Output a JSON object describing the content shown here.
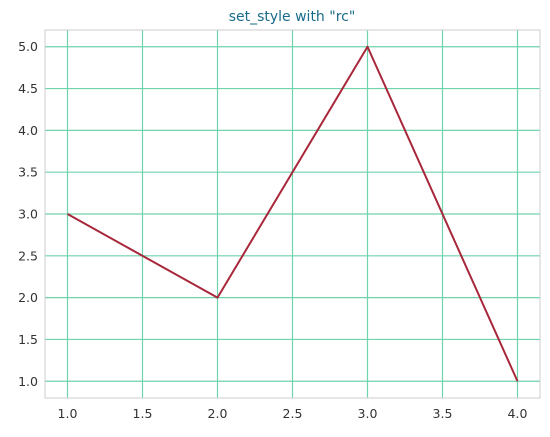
{
  "chart_data": {
    "type": "line",
    "title": "set_style with \"rc\"",
    "xlabel": "",
    "ylabel": "",
    "x": [
      1.0,
      2.0,
      3.0,
      4.0
    ],
    "series": [
      {
        "values": [
          3.0,
          2.0,
          5.0,
          1.0
        ]
      }
    ],
    "xlim": [
      0.85,
      4.15
    ],
    "ylim": [
      0.8,
      5.2
    ],
    "xticks": [
      1.0,
      1.5,
      2.0,
      2.5,
      3.0,
      3.5,
      4.0
    ],
    "xtick_labels": [
      "1.0",
      "1.5",
      "2.0",
      "2.5",
      "3.0",
      "3.5",
      "4.0"
    ],
    "yticks": [
      1.0,
      1.5,
      2.0,
      2.5,
      3.0,
      3.5,
      4.0,
      4.5,
      5.0
    ],
    "ytick_labels": [
      "1.0",
      "1.5",
      "2.0",
      "2.5",
      "3.0",
      "3.5",
      "4.0",
      "4.5",
      "5.0"
    ],
    "grid": true,
    "colors": {
      "line": "#a8273a",
      "grid": "#6fd3ac",
      "axes_edge": "#cccccc",
      "title": "#1a6b8a"
    }
  }
}
